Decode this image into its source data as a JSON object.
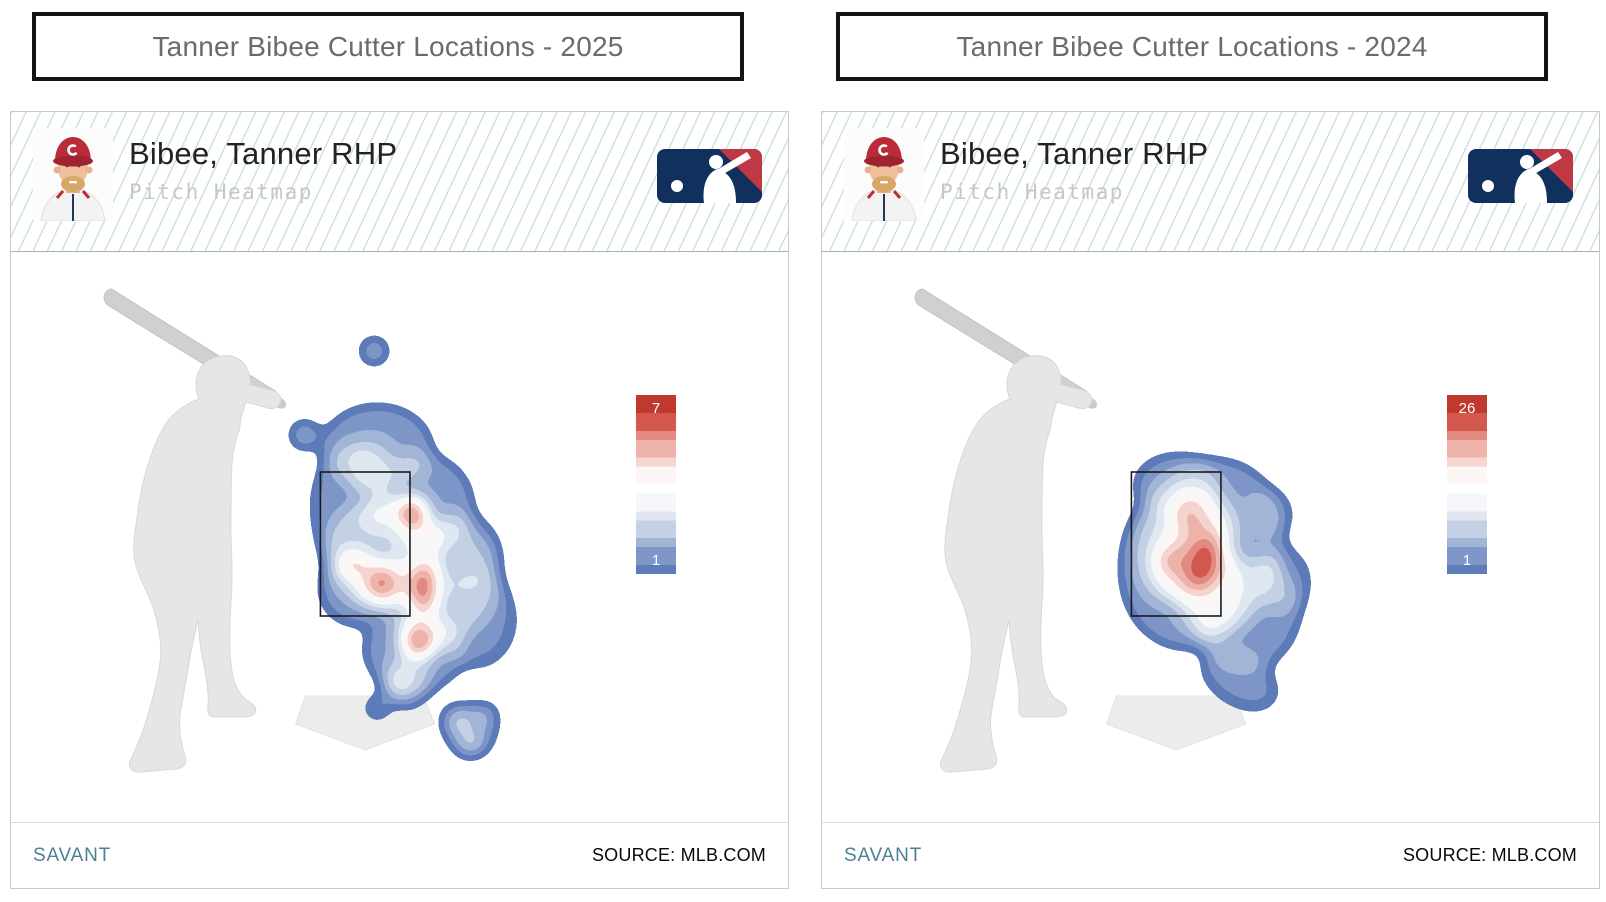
{
  "panels": [
    {
      "title": "Tanner Bibee Cutter Locations - 2025",
      "header": {
        "player_name": "Bibee, Tanner RHP",
        "subtitle": "Pitch Heatmap"
      },
      "legend": {
        "max_label": "7",
        "min_label": "1"
      },
      "footer": {
        "brand": "SAVANT",
        "source": "SOURCE: MLB.COM"
      }
    },
    {
      "title": "Tanner Bibee Cutter Locations - 2024",
      "header": {
        "player_name": "Bibee, Tanner RHP",
        "subtitle": "Pitch Heatmap"
      },
      "legend": {
        "max_label": "26",
        "min_label": "1"
      },
      "footer": {
        "brand": "SAVANT",
        "source": "SOURCE: MLB.COM"
      }
    }
  ],
  "colors": {
    "brand_teal": "#4d7f90",
    "title_gray": "#6b6b6b",
    "hatch_teal": "#96c3c3",
    "silhouette_gray": "#e6e6e6",
    "bat_gray": "#d0d0d0",
    "plate_gray": "#ececec",
    "zone_stroke": "#1a1a1a",
    "logo_navy": "#12305e",
    "logo_red": "#bf3945",
    "heat_low": "#5d7cb8",
    "heat_high": "#c0392e",
    "heat_palette": [
      "#5d7cb8",
      "#7e97c8",
      "#a3b5d7",
      "#c4d1e5",
      "#e0e7f1",
      "#f5f7fa",
      "#ffffff",
      "#fdf6f4",
      "#f5d5d0",
      "#eeb3ab",
      "#e18b81",
      "#d4584d",
      "#c0392e"
    ]
  },
  "chart_data": [
    {
      "type": "heatmap",
      "title": "Tanner Bibee Cutter Locations - 2025",
      "season": "2025",
      "player": "Bibee, Tanner RHP",
      "pitch": "Cutter",
      "view": "pitch-location kernel-density heatmap, catcher's perspective, right-handed batter silhouette at left, strike zone rectangle and home plate drawn",
      "color_scale": {
        "min": 1,
        "max": 7,
        "low_color": "#5d7cb8",
        "high_color": "#c0392e"
      },
      "pattern": "Scattered multi-modal distribution: red hotspots at upper outer edge of zone, lower-middle of zone, low off the outer edge, and below the zone; light blue outliers above the zone and inside off the plate; density spills below the zone toward home plate with a small cluster low and away",
      "hotspots_zone_coords": [
        {
          "zone_x": 1.02,
          "zone_y": 0.28,
          "label": "upper outer edge",
          "intensity": 7
        },
        {
          "zone_x": 0.68,
          "zone_y": 0.77,
          "label": "lower middle",
          "intensity": 6
        },
        {
          "zone_x": 1.16,
          "zone_y": 0.81,
          "label": "low off outer edge",
          "intensity": 7
        },
        {
          "zone_x": 1.1,
          "zone_y": 1.17,
          "label": "below zone, outer third",
          "intensity": 7
        }
      ],
      "density_blobs_format": [
        "cx",
        "cy",
        "rx",
        "ry",
        "rotate_deg",
        "opacity"
      ],
      "density_blobs": [
        [
          368,
          195,
          55,
          42,
          0,
          0.21
        ],
        [
          412,
          252,
          52,
          50,
          0,
          0.21
        ],
        [
          372,
          300,
          58,
          55,
          0,
          0.21
        ],
        [
          432,
          330,
          60,
          62,
          0,
          0.2
        ],
        [
          405,
          398,
          50,
          42,
          0,
          0.21
        ],
        [
          342,
          255,
          40,
          62,
          0,
          0.19
        ],
        [
          468,
          368,
          40,
          48,
          0,
          0.17
        ],
        [
          348,
          338,
          38,
          36,
          0,
          0.2
        ],
        [
          452,
          300,
          40,
          40,
          0,
          0.16
        ],
        [
          398,
          430,
          22,
          26,
          0,
          0.22
        ],
        [
          462,
          478,
          26,
          24,
          0,
          0.2
        ],
        [
          372,
          330,
          28,
          26,
          0,
          0.3
        ],
        [
          414,
          336,
          20,
          32,
          0,
          0.32
        ],
        [
          410,
          388,
          22,
          22,
          0,
          0.32
        ],
        [
          403,
          261,
          19,
          19,
          0,
          0.32
        ],
        [
          342,
          312,
          15,
          15,
          0,
          0.27
        ],
        [
          362,
          205,
          22,
          18,
          0,
          0.18
        ],
        [
          448,
          467,
          14,
          13,
          0,
          0.26
        ],
        [
          477,
          462,
          11,
          10,
          0,
          0.24
        ],
        [
          462,
          492,
          13,
          12,
          0,
          0.26
        ],
        [
          388,
          434,
          12,
          12,
          0,
          0.26
        ],
        [
          368,
          456,
          10,
          10,
          0,
          0.3
        ],
        [
          403,
          261,
          12,
          13,
          0,
          0.78
        ],
        [
          372,
          331,
          12,
          12,
          0,
          0.78
        ],
        [
          415,
          337,
          11,
          22,
          0,
          0.8
        ],
        [
          410,
          389,
          13,
          13,
          0,
          0.8
        ],
        [
          351,
          232,
          7,
          7,
          0,
          0.33
        ],
        [
          358,
          267,
          6,
          6,
          0,
          0.3
        ],
        [
          342,
          312,
          8,
          8,
          0,
          0.35
        ],
        [
          365,
          99,
          12,
          12,
          0,
          0.33
        ],
        [
          295,
          183,
          13,
          13,
          0,
          0.3
        ]
      ]
    },
    {
      "type": "heatmap",
      "title": "Tanner Bibee Cutter Locations - 2024",
      "season": "2024",
      "player": "Bibee, Tanner RHP",
      "pitch": "Cutter",
      "view": "pitch-location kernel-density heatmap, catcher's perspective, right-handed batter silhouette at left, strike zone rectangle and home plate drawn",
      "color_scale": {
        "min": 1,
        "max": 26,
        "low_color": "#5d7cb8",
        "high_color": "#c0392e"
      },
      "pattern": "Single concentrated cluster elongated diagonally from upper-middle of the zone to low-and-away; peak density at the lower middle-outer third of the strike zone with a blue fringe tailing off the outer edge below the zone",
      "hotspots_zone_coords": [
        {
          "zone_x": 0.85,
          "zone_y": 0.62,
          "label": "lower middle-outer third",
          "intensity": 26
        }
      ],
      "density_blobs_format": [
        "cx",
        "cy",
        "rx",
        "ry",
        "rotate_deg",
        "opacity"
      ],
      "density_blobs": [
        [
          382,
          302,
          78,
          98,
          25,
          0.21
        ],
        [
          428,
          362,
          52,
          58,
          20,
          0.2
        ],
        [
          356,
          232,
          42,
          30,
          0,
          0.2
        ],
        [
          344,
          300,
          32,
          48,
          0,
          0.18
        ],
        [
          420,
          428,
          42,
          26,
          30,
          0.18
        ],
        [
          464,
          328,
          28,
          33,
          0,
          0.15
        ],
        [
          452,
          260,
          22,
          22,
          0,
          0.13
        ],
        [
          376,
          296,
          40,
          60,
          20,
          0.27
        ],
        [
          392,
          342,
          33,
          42,
          20,
          0.24
        ],
        [
          366,
          252,
          19,
          19,
          0,
          0.24
        ],
        [
          352,
          310,
          17,
          17,
          0,
          0.24
        ],
        [
          379,
          300,
          23,
          42,
          15,
          0.38
        ],
        [
          371,
          267,
          13,
          13,
          0,
          0.3
        ],
        [
          346,
          309,
          12,
          12,
          0,
          0.28
        ],
        [
          384,
          309,
          12,
          26,
          12,
          0.8
        ],
        [
          385,
          312,
          7,
          14,
          12,
          0.5
        ]
      ]
    }
  ]
}
